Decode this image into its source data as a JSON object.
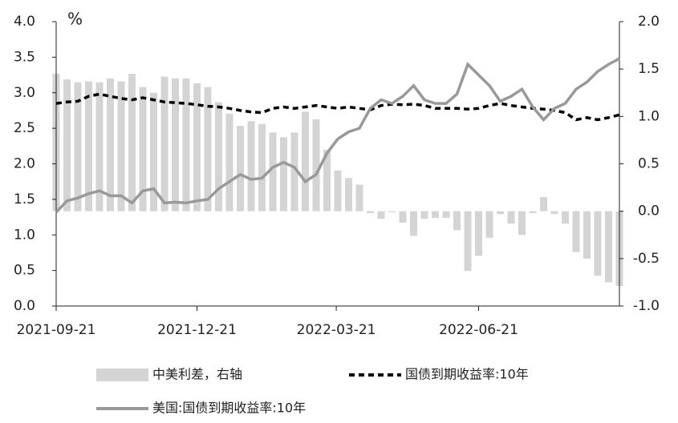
{
  "chart_data": {
    "type": "bar-line",
    "y_unit": "%",
    "x": [
      "2021-09-21",
      "2021-09-28",
      "2021-10-05",
      "2021-10-12",
      "2021-10-19",
      "2021-10-26",
      "2021-11-02",
      "2021-11-09",
      "2021-11-16",
      "2021-11-23",
      "2021-11-30",
      "2021-12-07",
      "2021-12-14",
      "2021-12-21",
      "2021-12-28",
      "2022-01-04",
      "2022-01-11",
      "2022-01-18",
      "2022-01-25",
      "2022-02-01",
      "2022-02-08",
      "2022-02-15",
      "2022-02-22",
      "2022-03-01",
      "2022-03-08",
      "2022-03-15",
      "2022-03-22",
      "2022-03-29",
      "2022-04-05",
      "2022-04-12",
      "2022-04-19",
      "2022-04-26",
      "2022-05-03",
      "2022-05-10",
      "2022-05-17",
      "2022-05-24",
      "2022-05-31",
      "2022-06-07",
      "2022-06-14",
      "2022-06-21",
      "2022-06-28",
      "2022-07-05",
      "2022-07-12",
      "2022-07-19",
      "2022-07-26",
      "2022-08-02",
      "2022-08-09",
      "2022-08-16",
      "2022-08-23",
      "2022-08-30",
      "2022-09-06",
      "2022-09-13",
      "2022-09-20"
    ],
    "xlim": [
      "2021-09-21",
      "2022-09-20"
    ],
    "xticks": [
      "2021-09-21",
      "2021-12-21",
      "2022-03-21",
      "2022-06-21"
    ],
    "ylim": [
      0,
      4
    ],
    "yticks": [
      {
        "value": 0,
        "label": "0.0"
      },
      {
        "value": 0.5,
        "label": "0.5"
      },
      {
        "value": 1,
        "label": "1.0"
      },
      {
        "value": 1.5,
        "label": "1.5"
      },
      {
        "value": 2,
        "label": "2.0"
      },
      {
        "value": 2.5,
        "label": "2.5"
      },
      {
        "value": 3,
        "label": "3.0"
      },
      {
        "value": 3.5,
        "label": "3.5"
      },
      {
        "value": 4,
        "label": "4.0"
      }
    ],
    "y2lim": [
      -1,
      2
    ],
    "y2ticks": [
      {
        "value": -1,
        "label": "-1.0"
      },
      {
        "value": -0.5,
        "label": "-0.5"
      },
      {
        "value": 0,
        "label": "0.0"
      },
      {
        "value": 0.5,
        "label": "0.5"
      },
      {
        "value": 1,
        "label": "1.0"
      },
      {
        "value": 1.5,
        "label": "1.5"
      },
      {
        "value": 2,
        "label": "2.0"
      }
    ],
    "series": [
      {
        "name": "中美利差，右轴",
        "type": "bar",
        "axis": "y2",
        "color": "#d4d4d4",
        "values": [
          1.45,
          1.39,
          1.36,
          1.37,
          1.36,
          1.4,
          1.37,
          1.45,
          1.31,
          1.25,
          1.42,
          1.4,
          1.4,
          1.35,
          1.31,
          1.15,
          1.03,
          0.9,
          0.95,
          0.92,
          0.83,
          0.78,
          0.83,
          1.05,
          0.97,
          0.65,
          0.43,
          0.35,
          0.28,
          -0.02,
          -0.08,
          -0.01,
          -0.12,
          -0.26,
          -0.08,
          -0.07,
          -0.07,
          -0.2,
          -0.63,
          -0.47,
          -0.28,
          -0.03,
          -0.13,
          -0.25,
          -0.02,
          0.15,
          -0.03,
          -0.13,
          -0.43,
          -0.5,
          -0.68,
          -0.75,
          -0.79
        ]
      },
      {
        "name": "国债到期收益率:10年",
        "type": "line",
        "dash": true,
        "color": "#000000",
        "values": [
          2.85,
          2.87,
          2.88,
          2.95,
          2.98,
          2.95,
          2.92,
          2.9,
          2.93,
          2.9,
          2.87,
          2.86,
          2.85,
          2.83,
          2.81,
          2.8,
          2.78,
          2.75,
          2.73,
          2.72,
          2.78,
          2.8,
          2.78,
          2.8,
          2.82,
          2.8,
          2.78,
          2.8,
          2.78,
          2.76,
          2.82,
          2.84,
          2.83,
          2.84,
          2.82,
          2.78,
          2.78,
          2.78,
          2.77,
          2.78,
          2.82,
          2.85,
          2.82,
          2.8,
          2.78,
          2.77,
          2.75,
          2.72,
          2.62,
          2.65,
          2.62,
          2.65,
          2.69
        ]
      },
      {
        "name": "美国:国债到期收益率:10年",
        "type": "line",
        "dash": false,
        "color": "#999999",
        "values": [
          1.32,
          1.48,
          1.52,
          1.58,
          1.62,
          1.55,
          1.55,
          1.45,
          1.62,
          1.65,
          1.45,
          1.46,
          1.45,
          1.48,
          1.5,
          1.65,
          1.75,
          1.85,
          1.78,
          1.8,
          1.95,
          2.02,
          1.95,
          1.75,
          1.85,
          2.15,
          2.35,
          2.45,
          2.5,
          2.78,
          2.9,
          2.85,
          2.95,
          3.1,
          2.9,
          2.85,
          2.85,
          2.98,
          3.4,
          3.25,
          3.1,
          2.88,
          2.95,
          3.05,
          2.8,
          2.62,
          2.78,
          2.85,
          3.05,
          3.15,
          3.3,
          3.4,
          3.48
        ]
      }
    ]
  }
}
